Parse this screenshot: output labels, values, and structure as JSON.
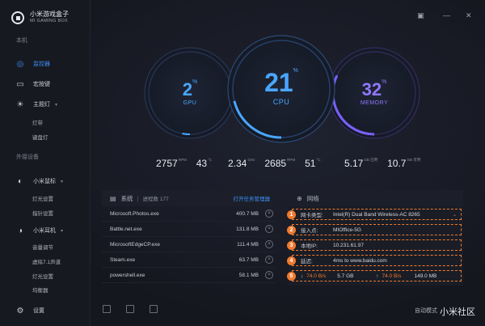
{
  "brand": {
    "name_cn": "小米游戏盒子",
    "name_en": "MI GAMING BOX"
  },
  "sidebar": {
    "section_local": "本机",
    "monitor": "监控器",
    "hotkey": "宏按键",
    "theme_light": "主题灯",
    "light_strip": "灯带",
    "keyboard_light": "键盘灯",
    "section_external": "外接设备",
    "mouse": "小米鼠标",
    "mouse_sub1": "灯光设置",
    "mouse_sub2": "指针设置",
    "headset": "小米耳机",
    "headset_sub1": "音量调节",
    "headset_sub2": "虚拟7.1声道",
    "headset_sub3": "灯光设置",
    "headset_sub4": "均衡器",
    "settings": "设置"
  },
  "gauges": {
    "gpu": {
      "value": "2",
      "unit": "%",
      "label": "GPU",
      "percent": 2,
      "color": "#49a6ff"
    },
    "cpu": {
      "value": "21",
      "unit": "%",
      "label": "CPU",
      "percent": 21,
      "color": "#49a6ff"
    },
    "memory": {
      "value": "32",
      "unit": "%",
      "label": "MEMORY",
      "percent": 32,
      "color": "#7b61ff"
    }
  },
  "stats": {
    "gpu_rpm": "2757",
    "gpu_rpm_unit": "RPM",
    "gpu_temp": "43",
    "gpu_temp_unit": "°C",
    "cpu_freq": "2.34",
    "cpu_freq_unit": "GHz",
    "cpu_rpm": "2685",
    "cpu_rpm_unit": "RPM",
    "cpu_temp": "51",
    "cpu_temp_unit": "°C",
    "mem_used": "5.17",
    "mem_used_unit": "GB 已用",
    "mem_avail": "10.7",
    "mem_avail_unit": "GB 可用"
  },
  "system_panel": {
    "title": "系统",
    "process_count": "进程数 177",
    "task_manager_link": "打开任务管理器",
    "processes": [
      {
        "name": "Microsoft.Photos.exe",
        "mem": "400.7 MB"
      },
      {
        "name": "Battle.net.exe",
        "mem": "131.8 MB"
      },
      {
        "name": "MicrosoftEdgeCP.exe",
        "mem": "111.4 MB"
      },
      {
        "name": "Steam.exe",
        "mem": "63.7 MB"
      },
      {
        "name": "powershell.exe",
        "mem": "58.1 MB"
      }
    ],
    "close_glyph": "×"
  },
  "network_panel": {
    "title": "网络",
    "rows": [
      {
        "badge": "1",
        "label": "网卡类型:",
        "value": "Intel(R) Dual Band Wireless-AC 8265"
      },
      {
        "badge": "2",
        "label": "接入点:",
        "value": "MIOffice-5G"
      },
      {
        "badge": "3",
        "label": "本地IP:",
        "value": "10.231.61.97"
      },
      {
        "badge": "4",
        "label": "延迟:",
        "value": "4ms to www.baidu.com"
      }
    ],
    "traffic": {
      "badge": "5",
      "down_speed": "74.0 B/s",
      "down_total": "5.7 GB",
      "up_speed": "74.0 B/s",
      "up_total": "149.0 MB"
    }
  },
  "footer": {
    "auto_mode": "自动模式",
    "watermark": "小米社区"
  },
  "colors": {
    "accent": "#3c8ef5",
    "annotation": "#f07a2e",
    "memory": "#7b61ff"
  }
}
